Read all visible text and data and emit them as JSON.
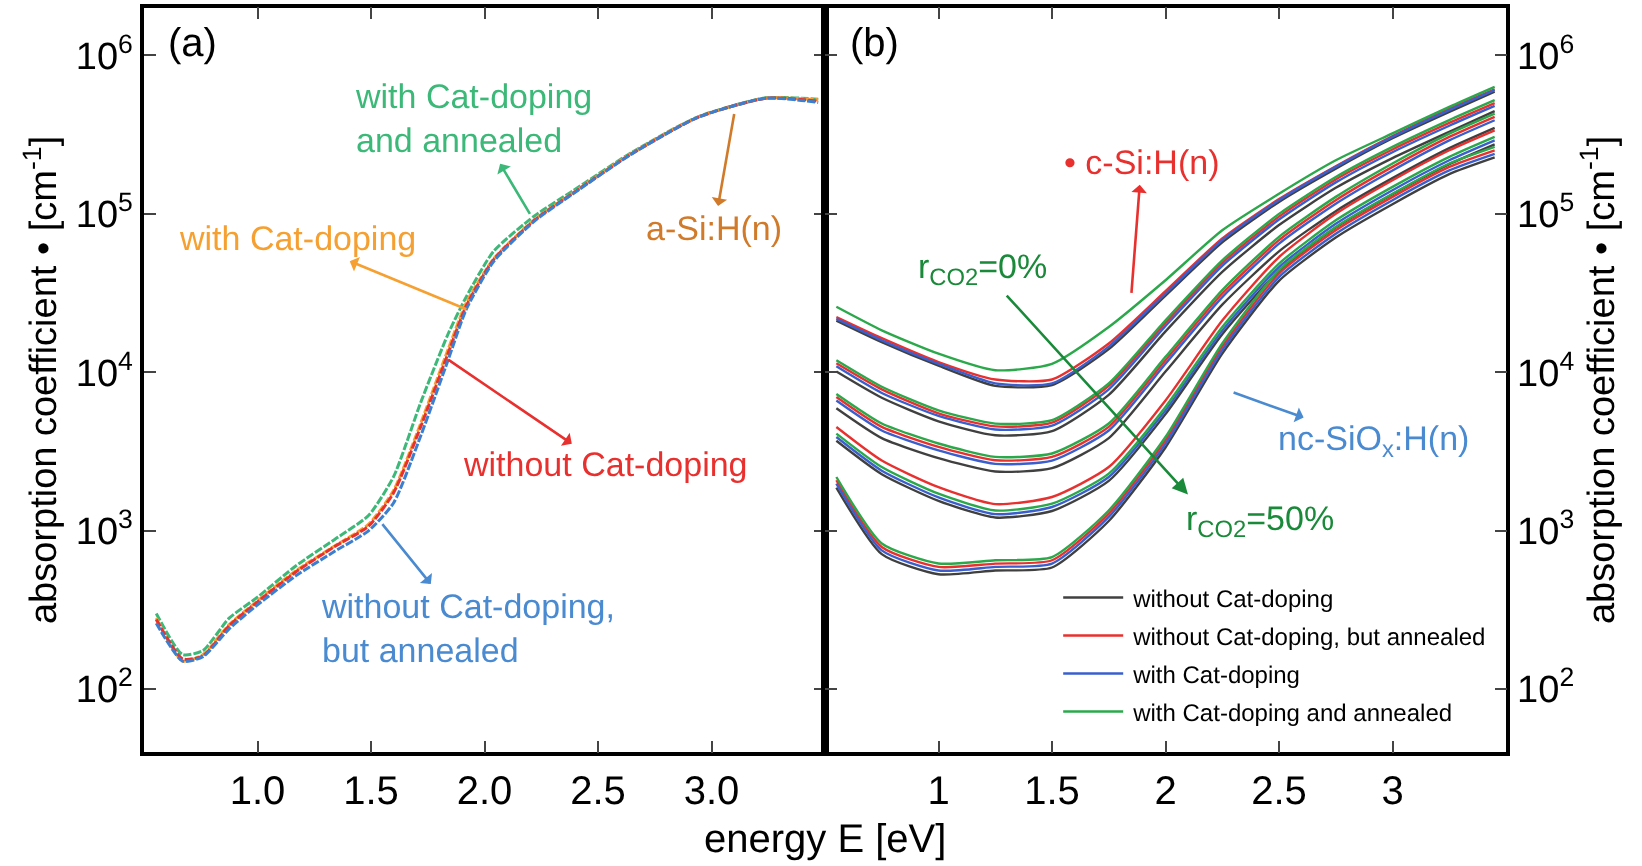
{
  "chart_data": [
    {
      "type": "line",
      "xlabel": "energy E [eV]",
      "ylabel": "absorption coefficient • [cm$^{-1}$]",
      "log": "y",
      "line_style": "dashed",
      "xlim": [
        0.5,
        3.5
      ],
      "xticks": [
        {
          "value": 1,
          "label": "1.0"
        },
        1.5,
        {
          "value": 2,
          "label": "2.0"
        },
        2.5,
        {
          "value": 3,
          "label": "3.0"
        }
      ],
      "ylim": [
        40,
        2000000
      ],
      "yticks": [
        {
          "value": 100,
          "label": "10$^{2}$"
        },
        {
          "value": 1000,
          "label": "10$^{3}$"
        },
        {
          "value": 10000,
          "label": "10$^{4}$"
        },
        {
          "value": 100000,
          "label": "10$^{5}$"
        },
        {
          "value": 1000000,
          "label": "10$^{6}$"
        }
      ],
      "x": [
        0.554,
        0.67,
        0.76,
        0.875,
        1.0,
        1.17,
        1.34,
        1.49,
        1.6,
        1.72,
        1.84,
        1.92,
        2.04,
        2.22,
        2.39,
        2.65,
        2.94,
        3.24,
        3.47
      ],
      "series": [
        {
          "color": "#3cb878",
          "values": [
            300,
            165,
            175,
            280,
            380,
            600,
            880,
            1250,
            2200,
            6500,
            17500,
            30000,
            58000,
            97000,
            140000,
            245000,
            410000,
            540000,
            530000
          ]
        },
        {
          "color": "#f5a030",
          "values": [
            280,
            150,
            165,
            255,
            360,
            560,
            800,
            1100,
            1800,
            4800,
            14000,
            27500,
            52000,
            92000,
            136000,
            242000,
            408000,
            537000,
            525000
          ]
        },
        {
          "color": "#e8312f",
          "values": [
            275,
            155,
            162,
            251,
            355,
            550,
            794,
            1070,
            1740,
            4570,
            13200,
            26300,
            51300,
            91200,
            135000,
            240000,
            407000,
            537000,
            515000
          ]
        },
        {
          "color": "#3a7fd0",
          "values": [
            260,
            150,
            160,
            240,
            340,
            520,
            740,
            1000,
            1500,
            4000,
            12000,
            25000,
            50000,
            90000,
            134000,
            240000,
            407000,
            537000,
            505000
          ]
        }
      ],
      "annotations": [
        "(a)",
        {
          "text": "with Cat-doping\nand annealed",
          "x": 2.2,
          "y": 100000
        },
        {
          "text": "with Cat-doping",
          "x": 1.92,
          "y": 25000
        },
        {
          "text": "a-Si:H(n)",
          "x": 3.1,
          "y": 427000
        },
        {
          "text": "without Cat-doping",
          "x": 1.84,
          "y": 12000
        },
        {
          "text": "without Cat-doping,\nbut annealed",
          "x": 1.55,
          "y": 1100
        }
      ]
    },
    {
      "type": "line",
      "ylabel": "absorption coefficient • [cm$^{-1}$]",
      "log": "y",
      "legend": "bottom right",
      "xlim": [
        0.5,
        3.5
      ],
      "xticks": [
        1,
        1.5,
        2,
        2.5,
        3
      ],
      "ylim": [
        40,
        2000000
      ],
      "yticks": [
        {
          "value": 100,
          "label": "10$^{2}$"
        },
        {
          "value": 1000,
          "label": "10$^{3}$"
        },
        {
          "value": 10000,
          "label": "10$^{4}$"
        },
        {
          "value": 100000,
          "label": "10$^{5}$"
        },
        {
          "value": 1000000,
          "label": "10$^{6}$"
        }
      ],
      "x": [
        0.55,
        0.75,
        1.0,
        1.25,
        1.5,
        1.75,
        2.0,
        2.25,
        2.5,
        2.75,
        3.0,
        3.25,
        3.45
      ],
      "series": [
        {
          "name": "without Cat-doping",
          "color": "#404040",
          "values": [
            21200,
            15500,
            11000,
            8200,
            8300,
            14000,
            30500,
            66000,
            119000,
            193000,
            300000,
            440000,
            590000
          ]
        },
        {
          "name": "without Cat-doping, but annealed",
          "color": "#e8312f",
          "values": [
            22300,
            16400,
            11600,
            9000,
            9000,
            15200,
            32500,
            70000,
            124000,
            200000,
            310000,
            460000,
            610000
          ]
        },
        {
          "name": "with Cat-doping",
          "color": "#3a5fcd",
          "values": [
            21700,
            15900,
            11300,
            8500,
            8500,
            14500,
            31400,
            68200,
            122000,
            198000,
            306000,
            452000,
            604000
          ]
        },
        {
          "name": "with Cat-doping and annealed",
          "color": "#2aa84a",
          "values": [
            25900,
            18400,
            13100,
            10300,
            11300,
            19300,
            38100,
            78800,
            134000,
            218000,
            322000,
            474000,
            634000
          ]
        },
        {
          "color": "#404040",
          "values": [
            10100,
            6900,
            4900,
            4000,
            4250,
            7200,
            18100,
            43000,
            85000,
            146000,
            225000,
            330000,
            445000
          ]
        },
        {
          "color": "#e8312f",
          "values": [
            11400,
            7800,
            5500,
            4550,
            4800,
            8200,
            20500,
            49000,
            96000,
            165000,
            255000,
            375000,
            500000
          ]
        },
        {
          "color": "#3a5fcd",
          "values": [
            10900,
            7400,
            5300,
            4350,
            4600,
            7800,
            19600,
            47000,
            92000,
            158000,
            245000,
            360000,
            480000
          ]
        },
        {
          "color": "#2aa84a",
          "values": [
            11900,
            8100,
            5750,
            4740,
            4980,
            8500,
            21300,
            50900,
            100000,
            171000,
            265000,
            391000,
            522000
          ]
        },
        {
          "color": "#404040",
          "values": [
            5930,
            3840,
            2870,
            2360,
            2480,
            3840,
            10100,
            26700,
            58000,
            104000,
            168000,
            260000,
            349000
          ]
        },
        {
          "color": "#e8312f",
          "values": [
            6980,
            4520,
            3380,
            2780,
            2920,
            4520,
            11900,
            31400,
            68200,
            122000,
            198000,
            306000,
            410000
          ]
        },
        {
          "color": "#3a5fcd",
          "values": [
            6630,
            4290,
            3210,
            2640,
            2770,
            4290,
            11300,
            29800,
            64800,
            116000,
            188000,
            291000,
            390000
          ]
        },
        {
          "color": "#2aa84a",
          "values": [
            7300,
            4750,
            3550,
            2920,
            3070,
            4750,
            12500,
            33000,
            71600,
            128000,
            208000,
            321000,
            430000
          ]
        },
        {
          "color": "#404040",
          "values": [
            3690,
            2270,
            1540,
            1210,
            1330,
            2060,
            5440,
            17400,
            43700,
            81900,
            133000,
            206000,
            275000
          ]
        },
        {
          "color": "#e8312f",
          "values": [
            4510,
            2770,
            1880,
            1470,
            1630,
            2520,
            6640,
            21200,
            53400,
            100000,
            163000,
            252000,
            337000
          ]
        },
        {
          "color": "#3a5fcd",
          "values": [
            3900,
            2390,
            1620,
            1270,
            1410,
            2180,
            5740,
            18300,
            46100,
            86500,
            141000,
            218000,
            291000
          ]
        },
        {
          "color": "#2aa84a",
          "values": [
            4100,
            2520,
            1710,
            1340,
            1480,
            2290,
            6040,
            19300,
            48500,
            91000,
            148000,
            229000,
            306000
          ]
        },
        {
          "color": "#404040",
          "values": [
            1870,
            710,
            530,
            560,
            585,
            1150,
            3350,
            13100,
            37800,
            70900,
            115000,
            178000,
            227000
          ]
        },
        {
          "color": "#e8312f",
          "values": [
            2080,
            788,
            590,
            619,
            650,
            1280,
            3720,
            14500,
            42000,
            78800,
            128000,
            198000,
            252000
          ]
        },
        {
          "color": "#3a5fcd",
          "values": [
            1980,
            750,
            560,
            590,
            620,
            1220,
            3530,
            13800,
            39900,
            74900,
            122000,
            188000,
            239000
          ]
        },
        {
          "color": "#2aa84a",
          "values": [
            2180,
            830,
            620,
            650,
            680,
            1340,
            3900,
            15200,
            44100,
            82700,
            134000,
            208000,
            265000
          ]
        }
      ],
      "annotations": [
        "(b)",
        "• c-Si:H(n)",
        "r$_{CO2}$=0%",
        "r$_{CO2}$=50%",
        "nc-SiO$_{x}$:H(n)"
      ]
    }
  ]
}
